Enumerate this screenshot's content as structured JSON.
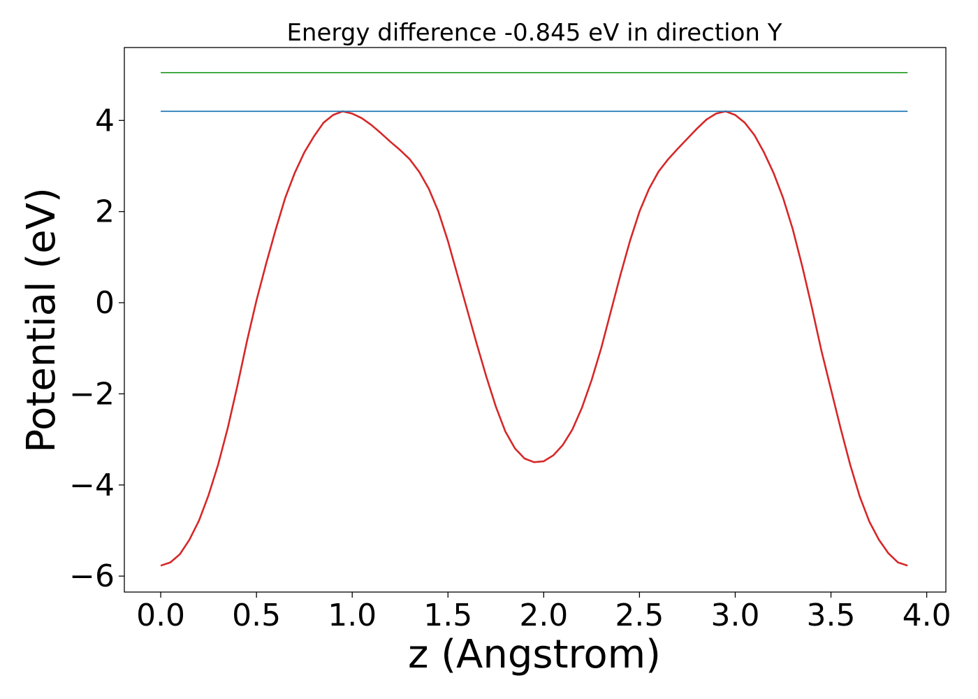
{
  "chart_data": {
    "type": "line",
    "title": "Energy difference -0.845 eV in direction Y",
    "xlabel": "z (Angstrom)",
    "ylabel": "Potential (eV)",
    "xlim": [
      -0.19,
      4.1
    ],
    "ylim": [
      -6.35,
      5.6
    ],
    "x_ticks": [
      0.0,
      0.5,
      1.0,
      1.5,
      2.0,
      2.5,
      3.0,
      3.5,
      4.0
    ],
    "x_tick_labels": [
      "0.0",
      "0.5",
      "1.0",
      "1.5",
      "2.0",
      "2.5",
      "3.0",
      "3.5",
      "4.0"
    ],
    "y_ticks": [
      -6,
      -4,
      -2,
      0,
      2,
      4
    ],
    "y_tick_labels": [
      "−6",
      "−4",
      "−2",
      "0",
      "2",
      "4"
    ],
    "grid": false,
    "legend": "none",
    "series": [
      {
        "color": "#d62728",
        "x": [
          0.0,
          0.05,
          0.1,
          0.15,
          0.2,
          0.25,
          0.3,
          0.35,
          0.4,
          0.45,
          0.5,
          0.55,
          0.6,
          0.65,
          0.7,
          0.75,
          0.8,
          0.85,
          0.9,
          0.95,
          1.0,
          1.05,
          1.1,
          1.15,
          1.2,
          1.25,
          1.3,
          1.35,
          1.4,
          1.45,
          1.5,
          1.55,
          1.6,
          1.65,
          1.7,
          1.75,
          1.8,
          1.85,
          1.9,
          1.95,
          2.0,
          2.05,
          2.1,
          2.15,
          2.2,
          2.25,
          2.3,
          2.35,
          2.4,
          2.45,
          2.5,
          2.55,
          2.6,
          2.65,
          2.7,
          2.75,
          2.8,
          2.85,
          2.9,
          2.95,
          3.0,
          3.05,
          3.1,
          3.15,
          3.2,
          3.25,
          3.3,
          3.35,
          3.4,
          3.45,
          3.5,
          3.55,
          3.6,
          3.65,
          3.7,
          3.75,
          3.8,
          3.85,
          3.9
        ],
        "y": [
          -5.77,
          -5.7,
          -5.52,
          -5.2,
          -4.78,
          -4.22,
          -3.55,
          -2.75,
          -1.83,
          -0.85,
          0.05,
          0.85,
          1.6,
          2.3,
          2.85,
          3.3,
          3.65,
          3.95,
          4.12,
          4.2,
          4.15,
          4.05,
          3.9,
          3.72,
          3.53,
          3.35,
          3.15,
          2.87,
          2.5,
          2.0,
          1.35,
          0.6,
          -0.15,
          -0.9,
          -1.62,
          -2.28,
          -2.83,
          -3.2,
          -3.42,
          -3.5,
          -3.48,
          -3.35,
          -3.12,
          -2.78,
          -2.3,
          -1.7,
          -1.0,
          -0.2,
          0.6,
          1.35,
          2.0,
          2.5,
          2.88,
          3.15,
          3.38,
          3.6,
          3.82,
          4.02,
          4.15,
          4.2,
          4.12,
          3.95,
          3.68,
          3.3,
          2.85,
          2.3,
          1.62,
          0.8,
          -0.1,
          -1.05,
          -1.9,
          -2.75,
          -3.55,
          -4.25,
          -4.8,
          -5.2,
          -5.5,
          -5.7,
          -5.77
        ]
      },
      {
        "color": "#1f77b4",
        "x": [
          0.0,
          3.9
        ],
        "y": [
          4.2,
          4.2
        ]
      },
      {
        "color": "#2ca02c",
        "x": [
          0.0,
          3.9
        ],
        "y": [
          5.05,
          5.05
        ]
      }
    ]
  }
}
